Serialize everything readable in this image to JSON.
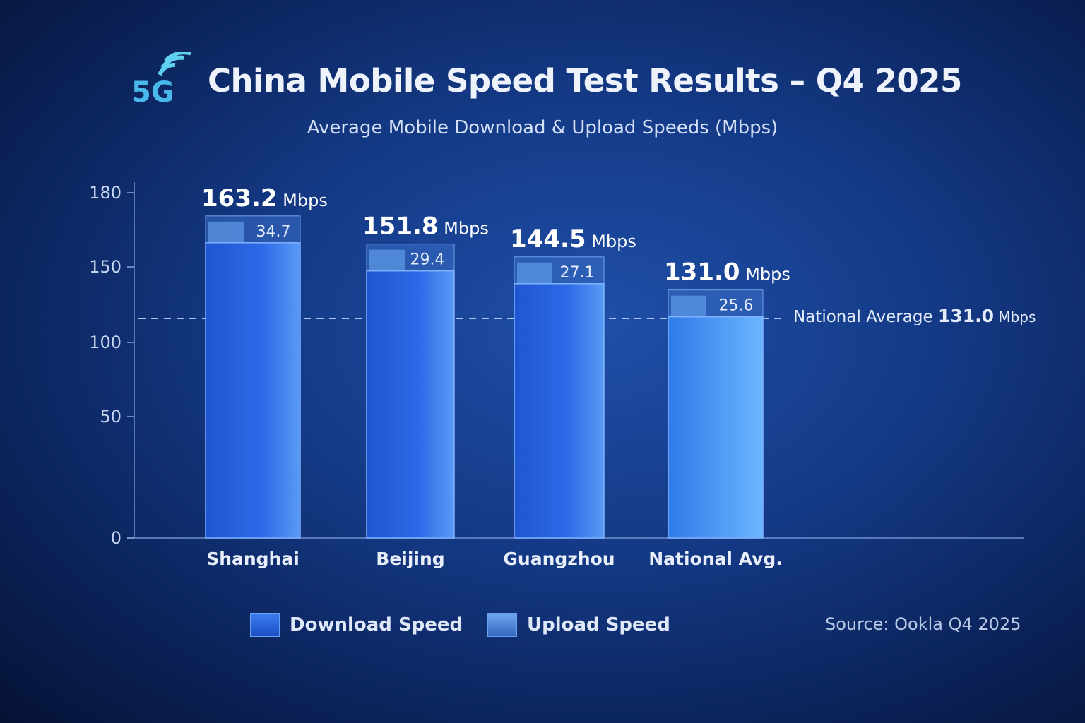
{
  "header": {
    "logo_text": "5G",
    "title": "China Mobile Speed Test Results – Q4 2025",
    "subtitle": "Average Mobile Download & Upload Speeds (Mbps)"
  },
  "chart_data": {
    "type": "bar",
    "title": "China Mobile Speed Test Results – Q4 2025",
    "subtitle": "Average Mobile Download & Upload Speeds (Mbps)",
    "categories": [
      "Shanghai",
      "Beijing",
      "Guangzhou",
      "National Avg."
    ],
    "series": [
      {
        "name": "Download Speed",
        "values": [
          163.2,
          151.8,
          144.5,
          131.0
        ],
        "color": "#2f6fe6"
      },
      {
        "name": "Upload Speed",
        "values": [
          34.7,
          29.4,
          27.1,
          25.6
        ],
        "color": "#4f8fe0"
      }
    ],
    "unit": "Mbps",
    "yticks": [
      0,
      50,
      100,
      150,
      180
    ],
    "ylim": [
      0,
      180
    ],
    "reference_line": {
      "label": "National Average",
      "value": "131.0",
      "unit": "Mbps"
    },
    "legend_placement": "bottom",
    "grid": false
  },
  "legend": [
    "Download Speed",
    "Upload Speed"
  ],
  "source": "Source: Ookla Q4 2025"
}
